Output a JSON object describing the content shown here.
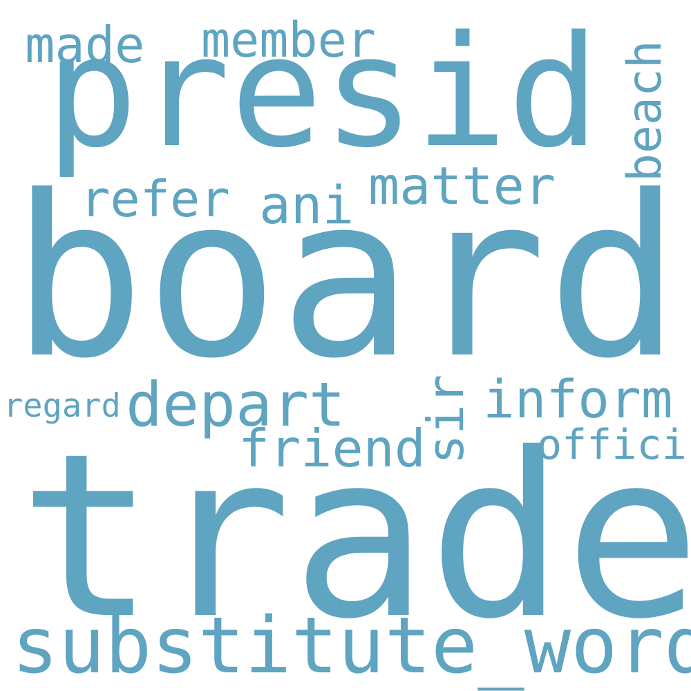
{
  "word_color": "#5fa4c0",
  "background": "#ffffff",
  "words": {
    "board": "board",
    "trade": "trade",
    "presid": "presid",
    "substitute_word": "substitute_word",
    "depart": "depart",
    "inform": "inform",
    "friend": "friend",
    "matter": "matter",
    "member": "member",
    "made": "made",
    "refer": "refer",
    "ani": "ani",
    "beach": "beach",
    "sir": "sir",
    "offici": "offici",
    "regard": "regard"
  }
}
